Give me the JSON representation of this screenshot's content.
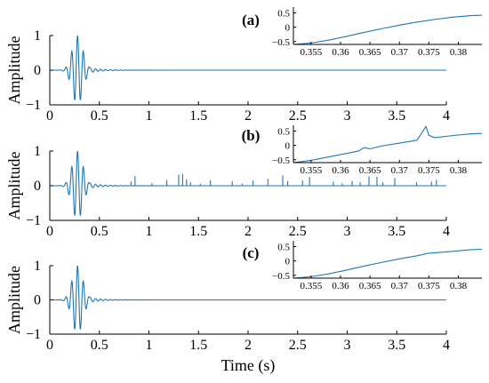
{
  "figure": {
    "xlabel": "Time (s)",
    "colors": {
      "signal": "#1f77b4",
      "axes": "#000000",
      "background": "#ffffff"
    }
  },
  "chart_data": [
    {
      "type": "line",
      "panel_label": "(a)",
      "ylabel": "Amplitude",
      "xlim": [
        0,
        4
      ],
      "ylim": [
        -1,
        1
      ],
      "x_ticks": [
        "0",
        "0.5",
        "1",
        "1.5",
        "2",
        "2.5",
        "3",
        "3.5",
        "4"
      ],
      "y_ticks": [
        "-1",
        "0",
        "1"
      ],
      "signal": "Gabor-like wavelet burst centred near 0.28 s (peak amplitude ≈ 1), decaying ringing to ~0.9 s, then flat at 0",
      "spikes": [],
      "inset": {
        "xlim": [
          0.352,
          0.384
        ],
        "ylim": [
          -0.6,
          0.7
        ],
        "x_ticks": [
          "0.355",
          "0.36",
          "0.365",
          "0.37",
          "0.375",
          "0.38"
        ],
        "y_ticks": [
          "0.5",
          "0",
          "-0.5"
        ],
        "x": [
          0.352,
          0.355,
          0.358,
          0.361,
          0.364,
          0.367,
          0.37,
          0.373,
          0.376,
          0.379,
          0.382,
          0.384
        ],
        "y": [
          -0.6,
          -0.55,
          -0.45,
          -0.32,
          -0.18,
          -0.05,
          0.07,
          0.18,
          0.27,
          0.35,
          0.4,
          0.42
        ]
      }
    },
    {
      "type": "line",
      "panel_label": "(b)",
      "ylabel": "Amplitude",
      "xlim": [
        0,
        4
      ],
      "ylim": [
        -1,
        1
      ],
      "x_ticks": [
        "0",
        "0.5",
        "1",
        "1.5",
        "2",
        "2.5",
        "3",
        "3.5",
        "4"
      ],
      "y_ticks": [
        "-1",
        "0",
        "1"
      ],
      "signal": "Same wavelet burst as (a) with additive positive impulse spikes",
      "spikes": [
        {
          "t": 0.82,
          "a": 0.12
        },
        {
          "t": 0.86,
          "a": 0.28
        },
        {
          "t": 1.03,
          "a": 0.07
        },
        {
          "t": 1.18,
          "a": 0.16
        },
        {
          "t": 1.3,
          "a": 0.32
        },
        {
          "t": 1.34,
          "a": 0.34
        },
        {
          "t": 1.38,
          "a": 0.19
        },
        {
          "t": 1.42,
          "a": 0.1
        },
        {
          "t": 1.52,
          "a": 0.05
        },
        {
          "t": 1.62,
          "a": 0.16
        },
        {
          "t": 1.84,
          "a": 0.13
        },
        {
          "t": 1.94,
          "a": 0.06
        },
        {
          "t": 2.05,
          "a": 0.15
        },
        {
          "t": 2.2,
          "a": 0.2
        },
        {
          "t": 2.35,
          "a": 0.3
        },
        {
          "t": 2.4,
          "a": 0.14
        },
        {
          "t": 2.55,
          "a": 0.15
        },
        {
          "t": 2.62,
          "a": 0.25
        },
        {
          "t": 2.86,
          "a": 0.12
        },
        {
          "t": 2.95,
          "a": 0.07
        },
        {
          "t": 3.05,
          "a": 0.14
        },
        {
          "t": 3.13,
          "a": 0.1
        },
        {
          "t": 3.22,
          "a": 0.27
        },
        {
          "t": 3.3,
          "a": 0.26
        },
        {
          "t": 3.36,
          "a": 0.1
        },
        {
          "t": 3.48,
          "a": 0.22
        },
        {
          "t": 3.7,
          "a": 0.1
        },
        {
          "t": 3.85,
          "a": 0.12
        },
        {
          "t": 3.9,
          "a": 0.17
        }
      ],
      "inset": {
        "xlim": [
          0.352,
          0.384
        ],
        "ylim": [
          -0.6,
          0.7
        ],
        "x_ticks": [
          "0.355",
          "0.36",
          "0.365",
          "0.37",
          "0.375",
          "0.38"
        ],
        "y_ticks": [
          "0.5",
          "0",
          "-0.5"
        ],
        "x": [
          0.352,
          0.355,
          0.358,
          0.361,
          0.363,
          0.364,
          0.365,
          0.367,
          0.37,
          0.373,
          0.3745,
          0.375,
          0.376,
          0.379,
          0.382,
          0.384
        ],
        "y": [
          -0.6,
          -0.52,
          -0.4,
          -0.28,
          -0.2,
          -0.08,
          -0.12,
          -0.02,
          0.08,
          0.18,
          0.66,
          0.35,
          0.27,
          0.34,
          0.4,
          0.42
        ]
      }
    },
    {
      "type": "line",
      "panel_label": "(c)",
      "ylabel": "Amplitude",
      "xlim": [
        0,
        4
      ],
      "ylim": [
        -1,
        1
      ],
      "x_ticks": [
        "0",
        "0.5",
        "1",
        "1.5",
        "2",
        "2.5",
        "3",
        "3.5",
        "4"
      ],
      "y_ticks": [
        "-1",
        "0",
        "1"
      ],
      "signal": "Recovered wavelet burst, spikes removed",
      "spikes": [],
      "inset": {
        "xlim": [
          0.352,
          0.384
        ],
        "ylim": [
          -0.6,
          0.7
        ],
        "x_ticks": [
          "0.355",
          "0.36",
          "0.365",
          "0.37",
          "0.375",
          "0.38"
        ],
        "y_ticks": [
          "0.5",
          "0",
          "-0.5"
        ],
        "x": [
          0.352,
          0.355,
          0.358,
          0.361,
          0.364,
          0.367,
          0.37,
          0.373,
          0.375,
          0.379,
          0.382,
          0.384
        ],
        "y": [
          -0.6,
          -0.55,
          -0.45,
          -0.32,
          -0.18,
          -0.05,
          0.07,
          0.18,
          0.27,
          0.33,
          0.39,
          0.41
        ]
      }
    }
  ]
}
